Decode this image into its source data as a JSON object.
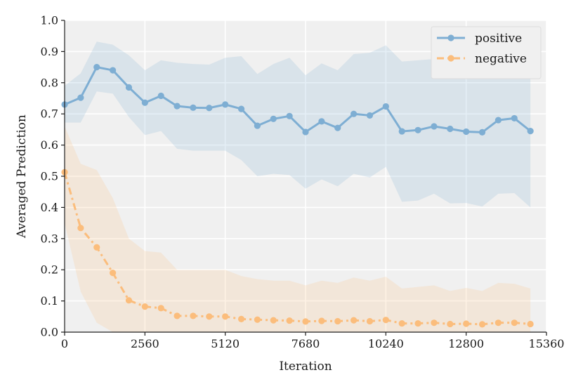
{
  "chart_data": {
    "type": "line",
    "xlabel": "Iteration",
    "ylabel": "Averaged Prediction",
    "xlim": [
      0,
      15360
    ],
    "ylim": [
      0.0,
      1.0
    ],
    "xticks": [
      0,
      2560,
      5120,
      7680,
      10240,
      12800,
      15360
    ],
    "xtick_labels": [
      "0",
      "2560",
      "5120",
      "7680",
      "10240",
      "12800",
      "15360"
    ],
    "yticks": [
      0.0,
      0.1,
      0.2,
      0.3,
      0.4,
      0.5,
      0.6,
      0.7,
      0.8,
      0.9,
      1.0
    ],
    "ytick_labels": [
      "0.0",
      "0.1",
      "0.2",
      "0.3",
      "0.4",
      "0.5",
      "0.6",
      "0.7",
      "0.8",
      "0.9",
      "1.0"
    ],
    "grid": true,
    "legend_position": "top-right",
    "x": [
      0,
      512,
      1024,
      1536,
      2048,
      2560,
      3072,
      3584,
      4096,
      4608,
      5120,
      5632,
      6144,
      6656,
      7168,
      7680,
      8192,
      8704,
      9216,
      9728,
      10240,
      10752,
      11264,
      11776,
      12288,
      12800,
      13312,
      13824,
      14336,
      14848
    ],
    "series": [
      {
        "name": "positive",
        "color": "#7eaed3",
        "line_style": "solid",
        "values": [
          0.73,
          0.752,
          0.85,
          0.84,
          0.785,
          0.736,
          0.758,
          0.725,
          0.72,
          0.719,
          0.73,
          0.716,
          0.662,
          0.684,
          0.693,
          0.642,
          0.676,
          0.655,
          0.7,
          0.695,
          0.724,
          0.644,
          0.648,
          0.66,
          0.652,
          0.643,
          0.641,
          0.68,
          0.686,
          0.645
        ],
        "upper": [
          0.79,
          0.83,
          0.932,
          0.922,
          0.888,
          0.84,
          0.872,
          0.864,
          0.86,
          0.858,
          0.88,
          0.885,
          0.828,
          0.86,
          0.88,
          0.824,
          0.862,
          0.84,
          0.892,
          0.896,
          0.92,
          0.868,
          0.872,
          0.876,
          0.87,
          0.876,
          0.852,
          0.906,
          0.91,
          0.89
        ],
        "lower": [
          0.672,
          0.672,
          0.772,
          0.765,
          0.69,
          0.632,
          0.645,
          0.588,
          0.582,
          0.582,
          0.582,
          0.552,
          0.5,
          0.508,
          0.504,
          0.46,
          0.49,
          0.468,
          0.508,
          0.496,
          0.53,
          0.418,
          0.422,
          0.444,
          0.413,
          0.414,
          0.403,
          0.444,
          0.446,
          0.4
        ]
      },
      {
        "name": "negative",
        "color": "#fbbd7c",
        "line_style": "dashdot",
        "values": [
          0.513,
          0.334,
          0.272,
          0.19,
          0.102,
          0.082,
          0.077,
          0.052,
          0.052,
          0.05,
          0.05,
          0.042,
          0.04,
          0.038,
          0.037,
          0.034,
          0.036,
          0.035,
          0.038,
          0.035,
          0.039,
          0.028,
          0.028,
          0.03,
          0.026,
          0.027,
          0.025,
          0.03,
          0.03,
          0.026
        ],
        "upper": [
          0.66,
          0.54,
          0.52,
          0.43,
          0.3,
          0.26,
          0.255,
          0.2,
          0.2,
          0.2,
          0.2,
          0.18,
          0.17,
          0.165,
          0.165,
          0.15,
          0.165,
          0.158,
          0.175,
          0.165,
          0.178,
          0.14,
          0.145,
          0.15,
          0.132,
          0.142,
          0.132,
          0.158,
          0.155,
          0.14
        ],
        "lower": [
          0.35,
          0.13,
          0.03,
          0.0,
          0.0,
          0.0,
          0.0,
          0.0,
          0.0,
          0.0,
          0.0,
          0.0,
          0.0,
          0.0,
          0.0,
          0.0,
          0.0,
          0.0,
          0.0,
          0.0,
          0.0,
          0.0,
          0.0,
          0.0,
          0.0,
          0.0,
          0.0,
          0.0,
          0.0,
          0.0
        ]
      }
    ]
  }
}
